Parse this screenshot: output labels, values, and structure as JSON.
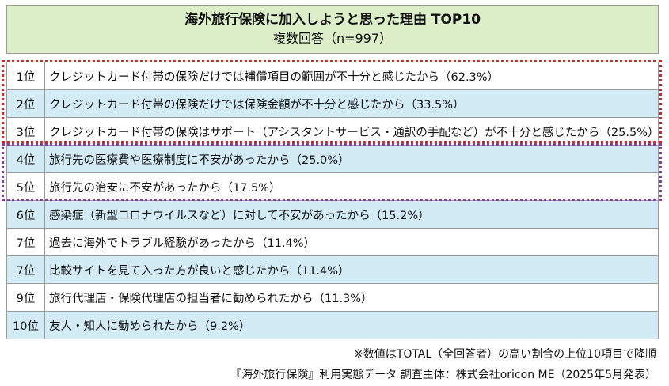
{
  "header": {
    "title": "海外旅行保険に加入しようと思った理由 TOP10",
    "subtitle": "複数回答（n=997）"
  },
  "rows": [
    {
      "rank": "1位",
      "reason": "クレジットカード付帯の保険だけでは補償項目の範囲が不十分と感じたから（62.3%）",
      "value": 62.3
    },
    {
      "rank": "2位",
      "reason": "クレジットカード付帯の保険だけでは保険金額が不十分と感じたから（33.5%）",
      "value": 33.5
    },
    {
      "rank": "3位",
      "reason": "クレジットカード付帯の保険はサポート（アシスタントサービス・通訳の手配など）が不十分と感じたから（25.5%）",
      "value": 25.5
    },
    {
      "rank": "4位",
      "reason": "旅行先の医療費や医療制度に不安があったから（25.0%）",
      "value": 25.0
    },
    {
      "rank": "5位",
      "reason": "旅行先の治安に不安があったから（17.5%）",
      "value": 17.5
    },
    {
      "rank": "6位",
      "reason": "感染症（新型コロナウイルスなど）に対して不安があったから（15.2%）",
      "value": 15.2
    },
    {
      "rank": "7位",
      "reason": "過去に海外でトラブル経験があったから（11.4%）",
      "value": 11.4
    },
    {
      "rank": "7位",
      "reason": "比較サイトを見て入った方が良いと感じたから（11.4%）",
      "value": 11.4
    },
    {
      "rank": "9位",
      "reason": "旅行代理店・保険代理店の担当者に勧められたから（11.3%）",
      "value": 11.3
    },
    {
      "rank": "10位",
      "reason": "友人・知人に勧められたから（9.2%）",
      "value": 9.2
    }
  ],
  "footer": {
    "note": "※数値はTOTAL（全回答者）の高い割合の上位10項目で降順",
    "source": "『海外旅行保険』利用実態データ 調査主体：株式会社oricon ME（2025年5月発表）"
  },
  "colors": {
    "header_bg": "#dcefc9",
    "row_blue": "#d2ebf5",
    "row_white": "#ffffff",
    "highlight_red": "#e02020",
    "highlight_purple": "#8a3aa8"
  }
}
